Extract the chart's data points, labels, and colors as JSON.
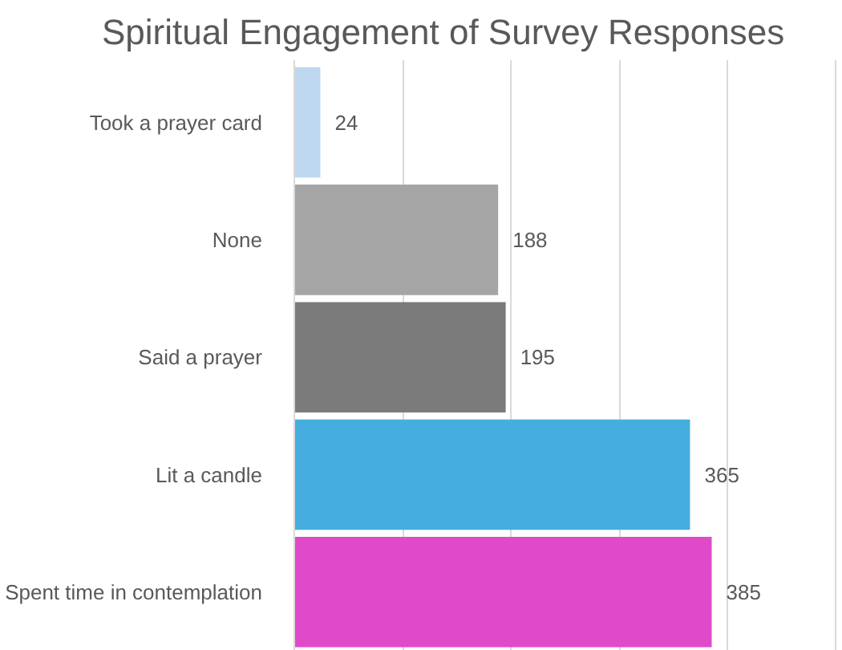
{
  "chart_data": {
    "type": "bar",
    "title": "Spiritual Engagement of Survey Responses",
    "orientation": "horizontal",
    "categories": [
      "Took a prayer card",
      "None",
      "Said a prayer",
      "Lit a candle",
      "Spent time in contemplation"
    ],
    "values": [
      24,
      188,
      195,
      365,
      385
    ],
    "colors": [
      "#bdd7ee",
      "#a5a5a5",
      "#7b7b7b",
      "#45aede",
      "#e04ac8"
    ],
    "xlim": [
      0,
      500
    ],
    "xticks": [
      0,
      100,
      200,
      300,
      400,
      500
    ],
    "grid": "x",
    "data_labels": true,
    "tick_labels": "y"
  }
}
